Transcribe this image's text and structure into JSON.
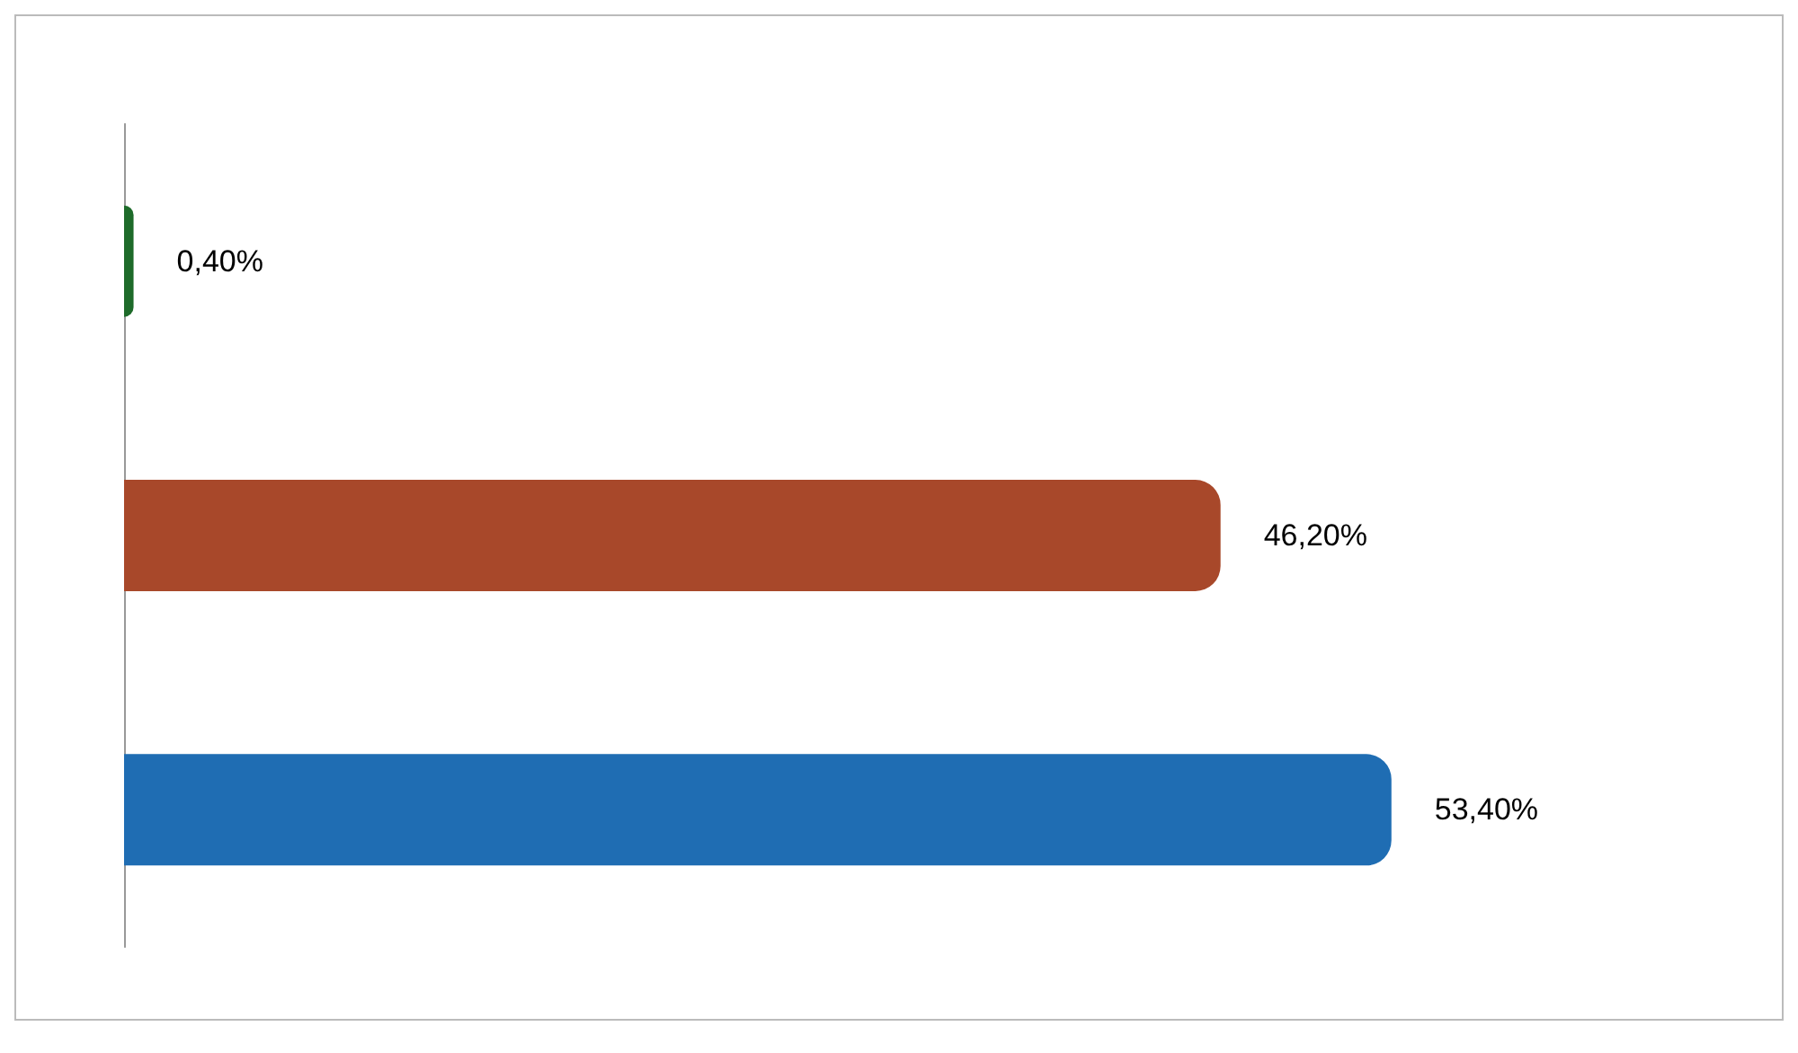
{
  "chart_data": {
    "type": "bar",
    "orientation": "horizontal",
    "categories": [
      null,
      null,
      null
    ],
    "values": [
      0.4,
      46.2,
      53.4
    ],
    "colors": [
      "#1e6b2a",
      "#a8482a",
      "#1f6db3"
    ],
    "value_labels": [
      "0,40%",
      "46,20%",
      "53,40%"
    ]
  }
}
